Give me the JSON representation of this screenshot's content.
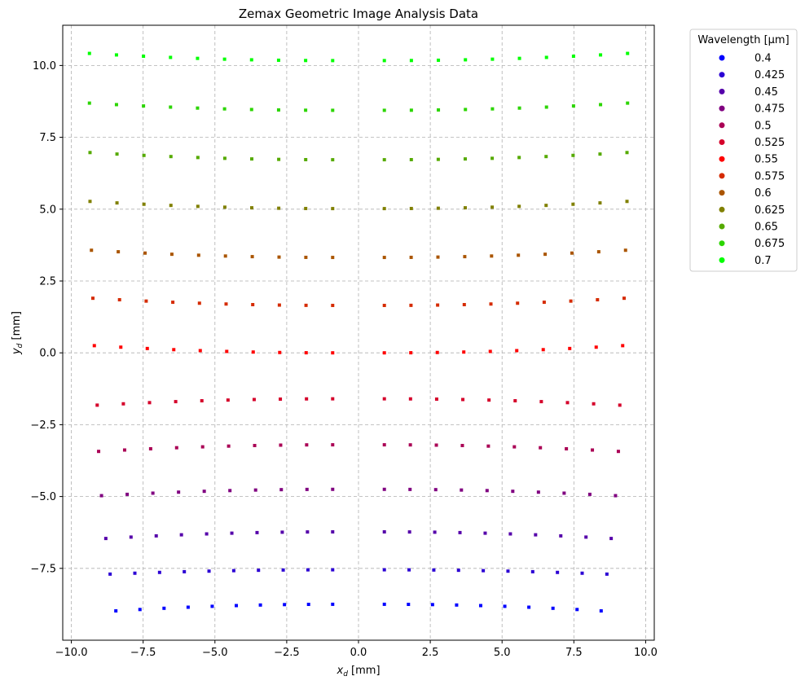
{
  "chart_data": {
    "type": "scatter",
    "title": "Zemax Geometric Image Analysis Data",
    "xlabel": "x_d [mm]",
    "ylabel": "y_d [mm]",
    "xlim": [
      -10.3,
      10.3
    ],
    "ylim": [
      -10.0,
      11.4
    ],
    "x_ticks": [
      -10.0,
      -7.5,
      -5.0,
      -2.5,
      0.0,
      2.5,
      5.0,
      7.5,
      10.0
    ],
    "x_tick_labels": [
      "−10.0",
      "−7.5",
      "−5.0",
      "−2.5",
      "0.0",
      "2.5",
      "5.0",
      "7.5",
      "10.0"
    ],
    "y_ticks": [
      -7.5,
      -5.0,
      -2.5,
      0.0,
      2.5,
      5.0,
      7.5,
      10.0
    ],
    "y_tick_labels": [
      "−7.5",
      "−5.0",
      "−2.5",
      "0.0",
      "2.5",
      "5.0",
      "7.5",
      "10.0"
    ],
    "grid": true,
    "legend": {
      "title": "Wavelength [µm]",
      "placement": "outside-top-right"
    },
    "series": [
      {
        "name": "0.4",
        "color": "#0000ff",
        "y": -8.75,
        "y_edge": 0.23,
        "halfwidth": 8.45
      },
      {
        "name": "0.425",
        "color": "#2b00d4",
        "y": -7.55,
        "y_edge": 0.15,
        "halfwidth": 8.65
      },
      {
        "name": "0.45",
        "color": "#5500aa",
        "y": -6.23,
        "y_edge": 0.23,
        "halfwidth": 8.8
      },
      {
        "name": "0.475",
        "color": "#800080",
        "y": -4.75,
        "y_edge": 0.22,
        "halfwidth": 8.95
      },
      {
        "name": "0.5",
        "color": "#aa0055",
        "y": -3.2,
        "y_edge": 0.23,
        "halfwidth": 9.05
      },
      {
        "name": "0.525",
        "color": "#d5002a",
        "y": -1.6,
        "y_edge": 0.22,
        "halfwidth": 9.1
      },
      {
        "name": "0.55",
        "color": "#ff0000",
        "y": 0.0,
        "y_edge": 0.25,
        "halfwidth": 9.2
      },
      {
        "name": "0.575",
        "color": "#d52b00",
        "y": 1.65,
        "y_edge": 0.25,
        "halfwidth": 9.25
      },
      {
        "name": "0.6",
        "color": "#aa5500",
        "y": 3.32,
        "y_edge": 0.25,
        "halfwidth": 9.3
      },
      {
        "name": "0.625",
        "color": "#808000",
        "y": 5.02,
        "y_edge": 0.25,
        "halfwidth": 9.35
      },
      {
        "name": "0.65",
        "color": "#55aa00",
        "y": 6.72,
        "y_edge": 0.25,
        "halfwidth": 9.35
      },
      {
        "name": "0.675",
        "color": "#2bd500",
        "y": 8.44,
        "y_edge": 0.25,
        "halfwidth": 9.37
      },
      {
        "name": "0.7",
        "color": "#00ff00",
        "y": 10.17,
        "y_edge": 0.25,
        "halfwidth": 9.37
      }
    ],
    "points_per_side": 10,
    "center_gap_x": 0.9
  }
}
